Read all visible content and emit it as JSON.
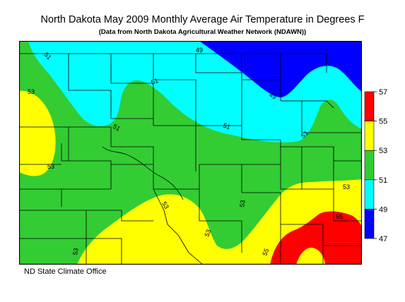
{
  "title": "North Dakota May 2009 Monthly Average Air Temperature in Degrees F",
  "subtitle": "(Data from North Dakota Agricultural Weather Network (NDAWN))",
  "credit": "ND State Climate Office",
  "legend": {
    "bins": [
      {
        "from": 55,
        "to": 57,
        "color": "#ff0000"
      },
      {
        "from": 53,
        "to": 55,
        "color": "#ffff00"
      },
      {
        "from": 51,
        "to": 53,
        "color": "#33cc33"
      },
      {
        "from": 49,
        "to": 51,
        "color": "#00ffff"
      },
      {
        "from": 47,
        "to": 49,
        "color": "#0000ff"
      }
    ],
    "tick_labels": [
      "57",
      "55",
      "53",
      "51",
      "49",
      "47"
    ]
  },
  "contour_labels": [
    "51",
    "49",
    "51",
    "49",
    "53",
    "51",
    "51",
    "51",
    "53",
    "53",
    "53",
    "53",
    "53",
    "53",
    "55",
    "55"
  ],
  "colors": {
    "t47_49": "#0000ff",
    "t49_51": "#00ffff",
    "t51_53": "#33cc33",
    "t53_55": "#ffff00",
    "t55_57": "#ff0000",
    "boundary": "#000000"
  }
}
